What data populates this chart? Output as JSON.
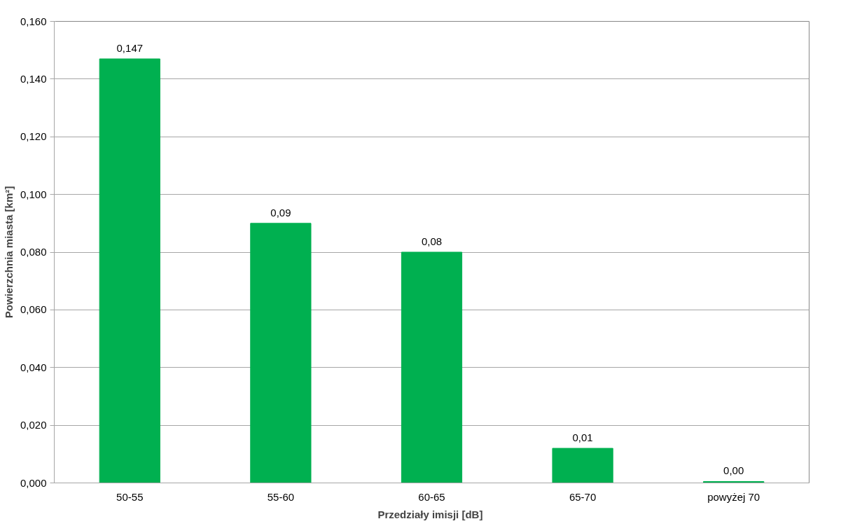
{
  "chart_data": {
    "type": "bar",
    "xlabel": "Przedziały  imisji [dB]",
    "ylabel": "Powierzchnia miasta [km²]",
    "categories": [
      "50-55",
      "55-60",
      "60-65",
      "65-70",
      "powyżej 70"
    ],
    "values": [
      0.147,
      0.09,
      0.08,
      0.012,
      0.0005
    ],
    "value_labels": [
      "0,147",
      "0,09",
      "0,08",
      "0,01",
      "0,00"
    ],
    "color": "#00b050",
    "ylim": [
      0,
      0.16
    ],
    "yticks": [
      {
        "value": 0,
        "label": "0,000"
      },
      {
        "value": 0.02,
        "label": "0,020"
      },
      {
        "value": 0.04,
        "label": "0,040"
      },
      {
        "value": 0.06,
        "label": "0,060"
      },
      {
        "value": 0.08,
        "label": "0,080"
      },
      {
        "value": 0.1,
        "label": "0,100"
      },
      {
        "value": 0.12,
        "label": "0,120"
      },
      {
        "value": 0.14,
        "label": "0,140"
      },
      {
        "value": 0.16,
        "label": "0,160"
      }
    ],
    "grid": "y"
  }
}
